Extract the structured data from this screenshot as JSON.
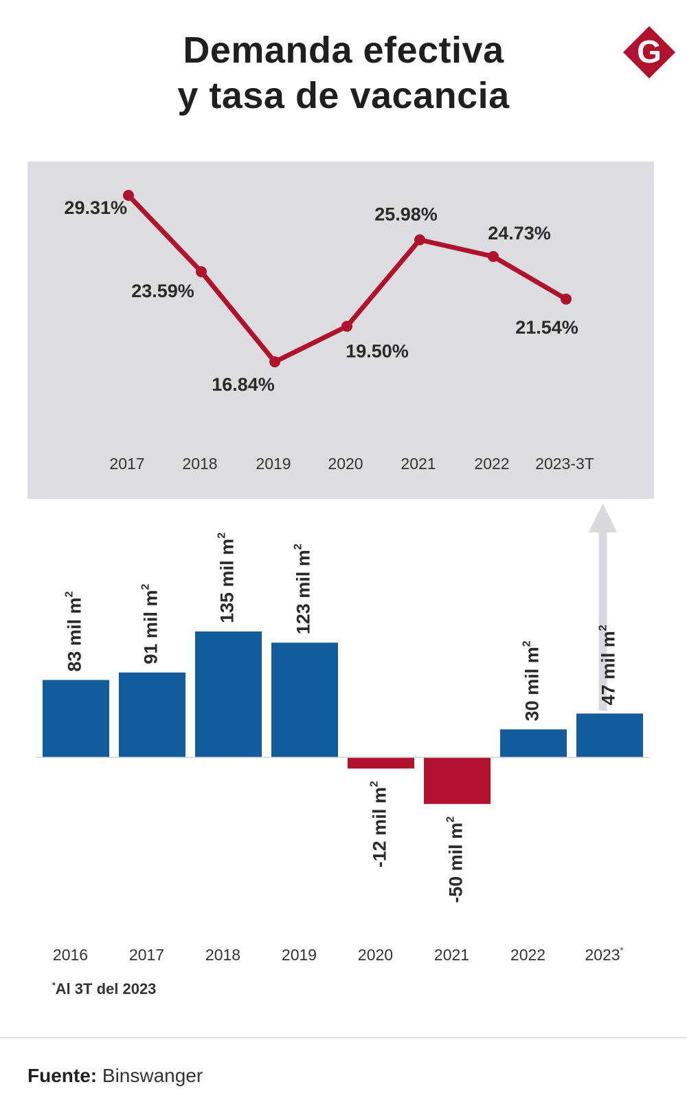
{
  "title": {
    "line1": "Demanda efectiva",
    "line2": "y tasa de vacancia"
  },
  "logo": {
    "letter": "G",
    "color": "#b0122e",
    "icon": "g-logo-icon"
  },
  "colors": {
    "line": "#b0122e",
    "bar_positive": "#125c9b",
    "bar_negative": "#b0122e",
    "panel": "#dcdde0",
    "arrow": "#d9dadd"
  },
  "chart_data": [
    {
      "type": "line",
      "categories": [
        "2017",
        "2018",
        "2019",
        "2020",
        "2021",
        "2022",
        "2023-3T"
      ],
      "values": [
        29.31,
        23.59,
        16.84,
        19.5,
        25.98,
        24.73,
        21.54
      ],
      "labels": [
        "29.31%",
        "23.59%",
        "16.84%",
        "19.50%",
        "25.98%",
        "24.73%",
        "21.54%"
      ],
      "label_pos": [
        "left",
        "below",
        "below",
        "below",
        "above",
        "above",
        "below"
      ],
      "background": "gray-panel"
    },
    {
      "type": "bar",
      "categories": [
        "2016",
        "2017",
        "2018",
        "2019",
        "2020",
        "2021",
        "2022",
        "2023"
      ],
      "category_sup": [
        "",
        "",
        "",
        "",
        "",
        "",
        "",
        "*"
      ],
      "values": [
        83,
        91,
        135,
        123,
        -12,
        -50,
        30,
        47
      ],
      "labels": [
        "83 mil m",
        "91 mil m",
        "135 mil m",
        "123 mil m",
        "-12 mil m",
        "-50 mil m",
        "30 mil m",
        "47 mil m"
      ],
      "label_sup": "2",
      "unit": "mil m²",
      "arrow_on_last": true
    }
  ],
  "footnote": {
    "mark": "*",
    "text": "Al 3T del 2023"
  },
  "source": {
    "label": "Fuente:",
    "text": "Binswanger"
  }
}
